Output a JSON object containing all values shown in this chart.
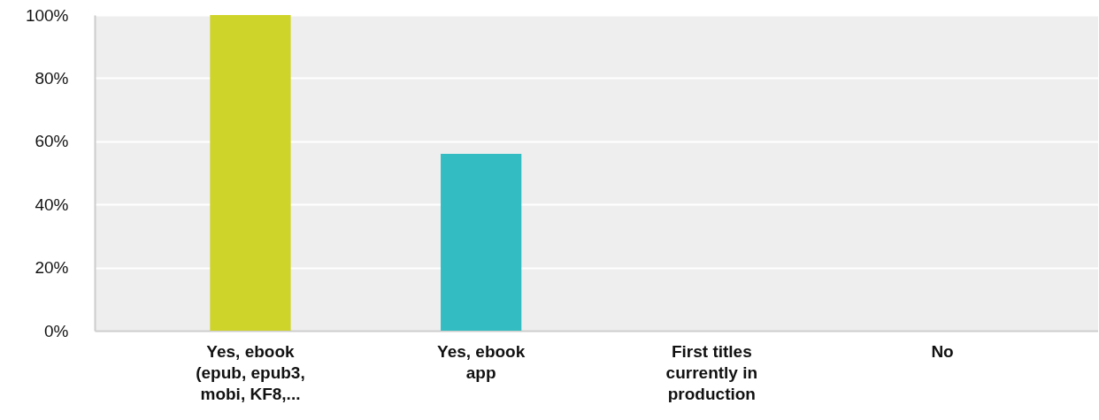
{
  "chart_data": {
    "type": "bar",
    "categories": [
      "Yes, ebook (epub, epub3, mobi, KF8,...",
      "Yes, ebook app",
      "First titles currently in production",
      "No"
    ],
    "values": [
      100,
      56,
      0,
      0
    ],
    "colors": [
      "#cfd42a",
      "#33bdc2",
      "#33bdc2",
      "#33bdc2"
    ],
    "ylim": [
      0,
      100
    ],
    "yticks": [
      {
        "value": 0,
        "label": "0%"
      },
      {
        "value": 20,
        "label": "20%"
      },
      {
        "value": 40,
        "label": "40%"
      },
      {
        "value": 60,
        "label": "60%"
      },
      {
        "value": 80,
        "label": "80%"
      },
      {
        "value": 100,
        "label": "100%"
      }
    ],
    "grid": "y"
  }
}
